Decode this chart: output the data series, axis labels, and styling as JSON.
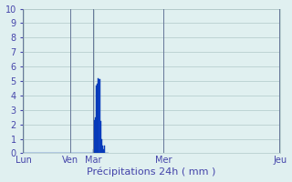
{
  "xlabel": "Précipitations 24h ( mm )",
  "ylim": [
    0,
    10
  ],
  "yticks": [
    0,
    1,
    2,
    3,
    4,
    5,
    6,
    7,
    8,
    9,
    10
  ],
  "background_color": "#e0f0f0",
  "bar_color": "#1144cc",
  "bar_edge_color": "#0033aa",
  "grid_color": "#b0c8c8",
  "text_color": "#4444aa",
  "bar_values": [
    0,
    0,
    0,
    0,
    0,
    0,
    0,
    0,
    0,
    0,
    0,
    0,
    0,
    0,
    0,
    0,
    0,
    0,
    0,
    0,
    0,
    0,
    0,
    0,
    0,
    0,
    0,
    0,
    0,
    0,
    0,
    0,
    0,
    0,
    0,
    0,
    0,
    0,
    0,
    0,
    0,
    0,
    0,
    0,
    0,
    0,
    0,
    0,
    0,
    0,
    0,
    0,
    0,
    0,
    0,
    0,
    0,
    0,
    0,
    0,
    0,
    0,
    0,
    0,
    0,
    0,
    0,
    0,
    0,
    0,
    0,
    0,
    0.3,
    2.3,
    2.5,
    4.7,
    4.8,
    5.2,
    5.1,
    2.2,
    1.0,
    0.5,
    0.3,
    0.5,
    0,
    0,
    0,
    0
  ],
  "n_per_day": 24,
  "day_labels": [
    "Lun",
    "Ven",
    "Mar",
    "Mer",
    "Jeu"
  ],
  "day_positions": [
    0,
    2,
    3,
    6,
    11
  ],
  "xlabel_fontsize": 8,
  "tick_fontsize": 7
}
